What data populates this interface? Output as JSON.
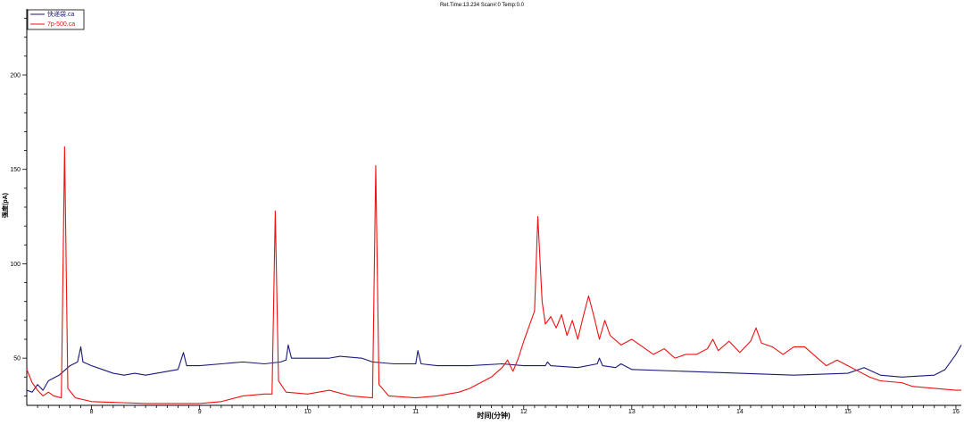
{
  "chart_data": {
    "type": "line",
    "title": "Ret.Time:13.234  Scan#:0  Temp:0.0",
    "xlabel": "时间(分钟)",
    "ylabel": "强度(pA)",
    "xlim": [
      7.4,
      16.05
    ],
    "ylim": [
      25,
      235
    ],
    "x_ticks": [
      "8",
      "9",
      "10",
      "11",
      "12",
      "13",
      "14",
      "15",
      "16"
    ],
    "x_tick_values": [
      8,
      9,
      10,
      11,
      12,
      13,
      14,
      15,
      16
    ],
    "y_ticks": [
      "50",
      "100",
      "150",
      "200"
    ],
    "y_tick_values": [
      50,
      100,
      150,
      200
    ],
    "grid": false,
    "legend_position": "top-left",
    "series": [
      {
        "name": "快递袋.ca",
        "color": "#1a1a7a",
        "points": [
          [
            7.4,
            33
          ],
          [
            7.45,
            32
          ],
          [
            7.5,
            36
          ],
          [
            7.55,
            33
          ],
          [
            7.6,
            38
          ],
          [
            7.7,
            41
          ],
          [
            7.8,
            46
          ],
          [
            7.87,
            48
          ],
          [
            7.9,
            56
          ],
          [
            7.92,
            48
          ],
          [
            8.0,
            46
          ],
          [
            8.1,
            44
          ],
          [
            8.2,
            42
          ],
          [
            8.3,
            41
          ],
          [
            8.4,
            42
          ],
          [
            8.5,
            41
          ],
          [
            8.6,
            42
          ],
          [
            8.7,
            43
          ],
          [
            8.8,
            44
          ],
          [
            8.85,
            53
          ],
          [
            8.88,
            46
          ],
          [
            9.0,
            46
          ],
          [
            9.2,
            47
          ],
          [
            9.4,
            48
          ],
          [
            9.6,
            47
          ],
          [
            9.75,
            48
          ],
          [
            9.8,
            49
          ],
          [
            9.82,
            57
          ],
          [
            9.85,
            50
          ],
          [
            10.0,
            50
          ],
          [
            10.2,
            50
          ],
          [
            10.3,
            51
          ],
          [
            10.5,
            50
          ],
          [
            10.6,
            48
          ],
          [
            10.8,
            47
          ],
          [
            11.0,
            47
          ],
          [
            11.02,
            54
          ],
          [
            11.05,
            47
          ],
          [
            11.2,
            46
          ],
          [
            11.5,
            46
          ],
          [
            11.8,
            47
          ],
          [
            12.0,
            46
          ],
          [
            12.2,
            46
          ],
          [
            12.22,
            48
          ],
          [
            12.25,
            46
          ],
          [
            12.5,
            45
          ],
          [
            12.68,
            47
          ],
          [
            12.7,
            50
          ],
          [
            12.73,
            46
          ],
          [
            12.85,
            45
          ],
          [
            12.9,
            47
          ],
          [
            13.0,
            44
          ],
          [
            13.5,
            43
          ],
          [
            14.0,
            42
          ],
          [
            14.5,
            41
          ],
          [
            15.0,
            42
          ],
          [
            15.15,
            45
          ],
          [
            15.3,
            41
          ],
          [
            15.5,
            40
          ],
          [
            15.8,
            41
          ],
          [
            15.9,
            44
          ],
          [
            16.0,
            52
          ],
          [
            16.05,
            57
          ]
        ]
      },
      {
        "name": "7p-500.ca",
        "color": "#ee1111",
        "points": [
          [
            7.4,
            44
          ],
          [
            7.45,
            37
          ],
          [
            7.5,
            33
          ],
          [
            7.55,
            30
          ],
          [
            7.6,
            32
          ],
          [
            7.65,
            30
          ],
          [
            7.72,
            29
          ],
          [
            7.75,
            162
          ],
          [
            7.78,
            34
          ],
          [
            7.85,
            29
          ],
          [
            8.0,
            27
          ],
          [
            8.5,
            26
          ],
          [
            9.0,
            26
          ],
          [
            9.2,
            27
          ],
          [
            9.4,
            30
          ],
          [
            9.6,
            31
          ],
          [
            9.67,
            31
          ],
          [
            9.7,
            128
          ],
          [
            9.73,
            38
          ],
          [
            9.8,
            32
          ],
          [
            10.0,
            31
          ],
          [
            10.2,
            33
          ],
          [
            10.4,
            30
          ],
          [
            10.6,
            29
          ],
          [
            10.63,
            152
          ],
          [
            10.66,
            36
          ],
          [
            10.75,
            30
          ],
          [
            11.0,
            29
          ],
          [
            11.2,
            30
          ],
          [
            11.4,
            32
          ],
          [
            11.5,
            34
          ],
          [
            11.7,
            40
          ],
          [
            11.8,
            45
          ],
          [
            11.85,
            49
          ],
          [
            11.9,
            43
          ],
          [
            11.95,
            50
          ],
          [
            12.0,
            59
          ],
          [
            12.05,
            67
          ],
          [
            12.1,
            75
          ],
          [
            12.13,
            125
          ],
          [
            12.17,
            80
          ],
          [
            12.2,
            68
          ],
          [
            12.25,
            72
          ],
          [
            12.3,
            66
          ],
          [
            12.35,
            73
          ],
          [
            12.4,
            62
          ],
          [
            12.45,
            70
          ],
          [
            12.5,
            60
          ],
          [
            12.55,
            72
          ],
          [
            12.6,
            83
          ],
          [
            12.65,
            72
          ],
          [
            12.7,
            60
          ],
          [
            12.75,
            70
          ],
          [
            12.8,
            62
          ],
          [
            12.9,
            57
          ],
          [
            13.0,
            60
          ],
          [
            13.1,
            56
          ],
          [
            13.2,
            52
          ],
          [
            13.3,
            55
          ],
          [
            13.4,
            50
          ],
          [
            13.5,
            52
          ],
          [
            13.6,
            52
          ],
          [
            13.7,
            55
          ],
          [
            13.75,
            60
          ],
          [
            13.8,
            54
          ],
          [
            13.9,
            59
          ],
          [
            14.0,
            53
          ],
          [
            14.1,
            59
          ],
          [
            14.15,
            66
          ],
          [
            14.2,
            58
          ],
          [
            14.3,
            56
          ],
          [
            14.4,
            52
          ],
          [
            14.5,
            56
          ],
          [
            14.6,
            56
          ],
          [
            14.7,
            51
          ],
          [
            14.8,
            46
          ],
          [
            14.9,
            49
          ],
          [
            15.0,
            46
          ],
          [
            15.1,
            43
          ],
          [
            15.2,
            40
          ],
          [
            15.3,
            38
          ],
          [
            15.5,
            37
          ],
          [
            15.6,
            35
          ],
          [
            15.8,
            34
          ],
          [
            16.0,
            33
          ],
          [
            16.05,
            33
          ]
        ]
      }
    ]
  }
}
